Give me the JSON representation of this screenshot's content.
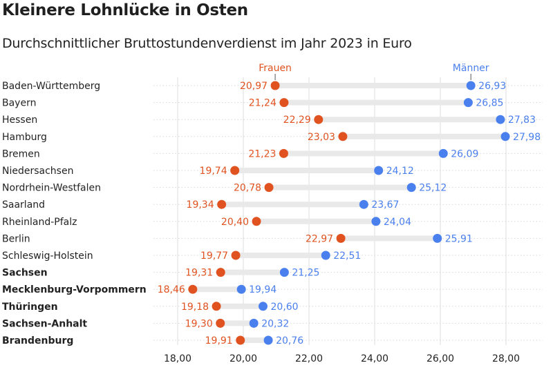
{
  "chart_data": {
    "type": "dot",
    "title": "Kleinere Lohnlücke in Osten",
    "subtitle": "Durchschnittlicher Bruttostundenverdienst im Jahr 2023 in Euro",
    "xlim": [
      17.9,
      29.0
    ],
    "xticks": [
      18,
      20,
      22,
      24,
      26,
      28
    ],
    "xtick_labels": [
      "18,00",
      "20,00",
      "22,00",
      "24,00",
      "26,00",
      "28,00"
    ],
    "grid": "vertical",
    "legend": "labels above first row",
    "colors": {
      "frauen": "#e0521f",
      "maenner": "#4a7fee",
      "bar": "#e9e9e9",
      "grid": "#dddddd"
    },
    "categories": [
      "Baden-Württemberg",
      "Bayern",
      "Hessen",
      "Hamburg",
      "Bremen",
      "Niedersachsen",
      "Nordrhein-Westfalen",
      "Saarland",
      "Rheinland-Pfalz",
      "Berlin",
      "Schleswig-Holstein",
      "Sachsen",
      "Mecklenburg-Vorpommern",
      "Thüringen",
      "Sachsen-Anhalt",
      "Brandenburg"
    ],
    "bold_categories": [
      "Sachsen",
      "Mecklenburg-Vorpommern",
      "Thüringen",
      "Sachsen-Anhalt",
      "Brandenburg"
    ],
    "series": [
      {
        "name": "Frauen",
        "values": [
          20.97,
          21.24,
          22.29,
          23.03,
          21.23,
          19.74,
          20.78,
          19.34,
          20.4,
          22.97,
          19.77,
          19.31,
          18.46,
          19.18,
          19.3,
          19.91
        ],
        "labels": [
          "20,97",
          "21,24",
          "22,29",
          "23,03",
          "21,23",
          "19,74",
          "20,78",
          "19,34",
          "20,40",
          "22,97",
          "19,77",
          "19,31",
          "18,46",
          "19,18",
          "19,30",
          "19,91"
        ]
      },
      {
        "name": "Männer",
        "values": [
          26.93,
          26.85,
          27.83,
          27.98,
          26.09,
          24.12,
          25.12,
          23.67,
          24.04,
          25.91,
          22.51,
          21.25,
          19.94,
          20.6,
          20.32,
          20.76
        ],
        "labels": [
          "26,93",
          "26,85",
          "27,83",
          "27,98",
          "26,09",
          "24,12",
          "25,12",
          "23,67",
          "24,04",
          "25,91",
          "22,51",
          "21,25",
          "19,94",
          "20,60",
          "20,32",
          "20,76"
        ]
      }
    ]
  }
}
